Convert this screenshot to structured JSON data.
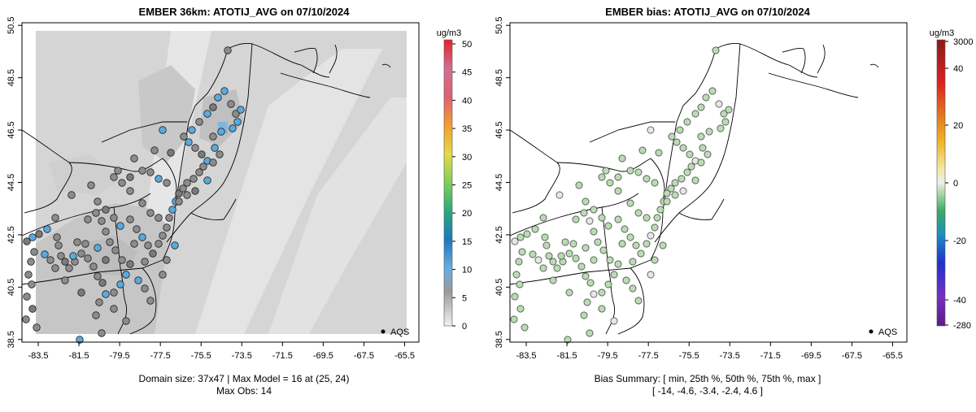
{
  "left_panel": {
    "title": "EMBER 36km: ATOTIJ_AVG on 07/10/2024",
    "colorbar": {
      "unit": "ug/m3",
      "ticks": [
        "0",
        "5",
        "10",
        "15",
        "20",
        "25",
        "30",
        "35",
        "40",
        "45",
        "50"
      ],
      "range": [
        0,
        50
      ]
    },
    "legend_label": "AQS",
    "footer_line1": "Domain size: 37x47 | Max Model = 16 at (25, 24)",
    "footer_line2": "Max Obs: 14"
  },
  "right_panel": {
    "title": "EMBER bias: ATOTIJ_AVG on 07/10/2024",
    "colorbar": {
      "unit": "ug/m3",
      "ticks": [
        "3000",
        "40",
        "20",
        "0",
        "-20",
        "-40",
        "-280"
      ]
    },
    "legend_label": "AQS",
    "footer_line1": "Bias Summary: [ min, 25th %, 50th %, 75th %, max ]",
    "footer_line2": "[ -14,   -4.6,   -3.4,   -2.4,   4.6 ]"
  },
  "axes": {
    "x_ticks": [
      "-83.5",
      "-81.5",
      "-79.5",
      "-77.5",
      "-75.5",
      "-73.5",
      "-71.5",
      "-69.5",
      "-67.5",
      "-65.5"
    ],
    "y_ticks": [
      "38.5",
      "40.5",
      "42.5",
      "44.5",
      "46.5",
      "48.5",
      "50.5"
    ],
    "lon_range": [
      -84.3,
      -64.8
    ],
    "lat_range": [
      38.4,
      50.6
    ]
  },
  "colors": {
    "gray_obs": "#8c8c8c",
    "blue_obs": "#5aa9de",
    "bias_obs": "#b9dcb2",
    "model_field": "#d4d4d4"
  }
}
